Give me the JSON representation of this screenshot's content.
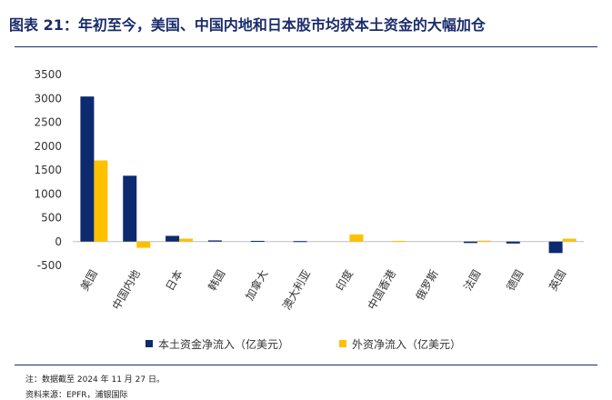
{
  "title": "图表 21：年初至今，美国、中国内地和日本股市均获本土资金的大幅加仓",
  "note": "注：数据截至 2024 年 11 月 27 日。",
  "source": "资料来源：EPFR，浦银国际",
  "colors": {
    "domestic": "#0d2a6e",
    "foreign": "#ffc000",
    "rule": "#1a2c6b"
  },
  "chart_data": {
    "type": "bar",
    "title": "",
    "xlabel": "",
    "ylabel": "",
    "ylim": [
      -500,
      3500
    ],
    "yticks": [
      3500,
      3000,
      2500,
      2000,
      1500,
      1000,
      500,
      0,
      -500
    ],
    "categories": [
      "美国",
      "中国内地",
      "日本",
      "韩国",
      "加拿大",
      "澳大利亚",
      "印度",
      "中国香港",
      "俄罗斯",
      "法国",
      "德国",
      "英国"
    ],
    "series": [
      {
        "name": "本土资金净流入（亿美元）",
        "values": [
          3040,
          1380,
          120,
          25,
          15,
          10,
          0,
          0,
          0,
          -30,
          -40,
          -240
        ]
      },
      {
        "name": "外资净流入（亿美元）",
        "values": [
          1700,
          -130,
          60,
          0,
          0,
          0,
          150,
          15,
          0,
          20,
          0,
          60
        ]
      }
    ],
    "legend": "bottom",
    "grid": false
  }
}
